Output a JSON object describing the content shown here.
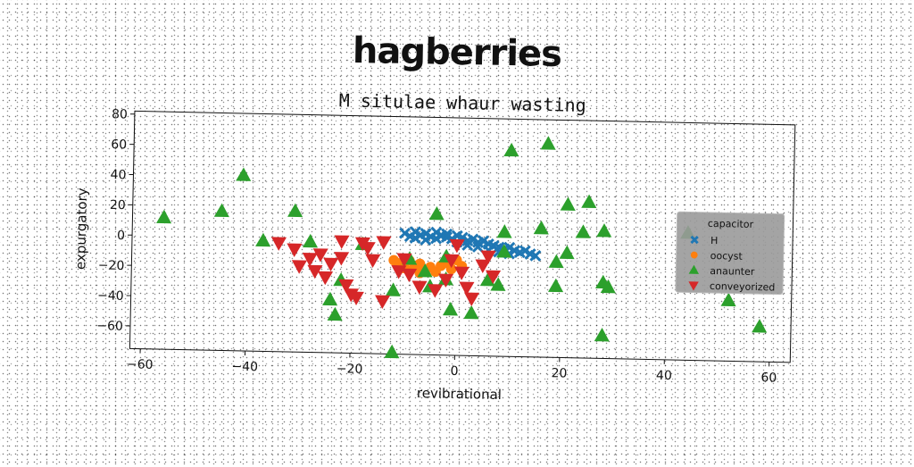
{
  "main_title": "hagberries",
  "chart_data": {
    "type": "scatter",
    "title": "M situlae whaur wasting",
    "xlabel": "revibrational",
    "ylabel": "expurgatory",
    "xlim": [
      -62,
      64
    ],
    "ylim": [
      -75,
      82
    ],
    "xticks": [
      -60,
      -40,
      -20,
      0,
      20,
      40,
      60
    ],
    "yticks": [
      -60,
      -40,
      -20,
      0,
      20,
      40,
      60,
      80
    ],
    "grid": false,
    "legend": {
      "title": "capacitor",
      "position": "center-right"
    },
    "series": [
      {
        "name": "H",
        "marker": "x",
        "color": "#1f77b4",
        "points": [
          [
            -10,
            5
          ],
          [
            -9,
            3
          ],
          [
            -8,
            6
          ],
          [
            -7,
            4
          ],
          [
            -6,
            5
          ],
          [
            -5,
            3
          ],
          [
            -4,
            6
          ],
          [
            -3,
            4
          ],
          [
            -2,
            5
          ],
          [
            -1,
            2
          ],
          [
            0,
            4
          ],
          [
            1,
            3
          ],
          [
            2,
            1
          ],
          [
            3,
            2
          ],
          [
            4,
            0
          ],
          [
            5,
            1
          ],
          [
            6,
            -1
          ],
          [
            7,
            -2
          ],
          [
            8,
            -3
          ],
          [
            9,
            -4
          ],
          [
            10,
            -3
          ],
          [
            11,
            -5
          ],
          [
            12,
            -6
          ],
          [
            13,
            -5
          ],
          [
            14,
            -7
          ],
          [
            15,
            -8
          ],
          [
            -8,
            2
          ],
          [
            -6,
            1
          ],
          [
            -4,
            2
          ],
          [
            -2,
            3
          ],
          [
            0,
            0
          ],
          [
            2,
            -2
          ],
          [
            4,
            -3
          ],
          [
            6,
            -5
          ],
          [
            8,
            -6
          ],
          [
            10,
            -7
          ]
        ]
      },
      {
        "name": "oocyst",
        "marker": "o",
        "color": "#ff7f0e",
        "points": [
          [
            -12,
            -13
          ],
          [
            -11,
            -15
          ],
          [
            -10,
            -18
          ],
          [
            -9,
            -20
          ],
          [
            -8,
            -17
          ],
          [
            -7,
            -21
          ],
          [
            -6,
            -19
          ],
          [
            -5,
            -17
          ],
          [
            -4,
            -20
          ],
          [
            -3,
            -16
          ],
          [
            -2,
            -14
          ],
          [
            -1,
            -18
          ],
          [
            0,
            -12
          ],
          [
            1,
            -16
          ],
          [
            -9,
            -13
          ],
          [
            -7,
            -15
          ]
        ]
      },
      {
        "name": "anaunter",
        "marker": "^",
        "color": "#2ca02c",
        "points": [
          [
            -56,
            12
          ],
          [
            -41,
            41
          ],
          [
            -45,
            17
          ],
          [
            -37,
            -2
          ],
          [
            -31,
            18
          ],
          [
            -28,
            -2
          ],
          [
            -24,
            -40
          ],
          [
            -23,
            -50
          ],
          [
            -22,
            -27
          ],
          [
            -18,
            -3
          ],
          [
            -12,
            -33
          ],
          [
            -12,
            -74
          ],
          [
            -9,
            -12
          ],
          [
            -6,
            -20
          ],
          [
            -5,
            -30
          ],
          [
            -4,
            18
          ],
          [
            -2,
            -10
          ],
          [
            -2,
            -25
          ],
          [
            -1,
            -45
          ],
          [
            3,
            -47
          ],
          [
            6,
            -25
          ],
          [
            8,
            -28
          ],
          [
            9,
            7
          ],
          [
            9,
            -6
          ],
          [
            10,
            61
          ],
          [
            16,
            10
          ],
          [
            17,
            66
          ],
          [
            19,
            -12
          ],
          [
            19,
            -28
          ],
          [
            21,
            26
          ],
          [
            21,
            -6
          ],
          [
            24,
            8
          ],
          [
            25,
            28
          ],
          [
            28,
            9
          ],
          [
            28,
            -25
          ],
          [
            29,
            -28
          ],
          [
            28,
            -60
          ],
          [
            44,
            9
          ],
          [
            52,
            -35
          ],
          [
            58,
            -52
          ]
        ]
      },
      {
        "name": "conveyorized",
        "marker": "v",
        "color": "#d62728",
        "points": [
          [
            -34,
            -3
          ],
          [
            -31,
            -7
          ],
          [
            -30,
            -18
          ],
          [
            -28,
            -13
          ],
          [
            -27,
            -21
          ],
          [
            -26,
            -10
          ],
          [
            -25,
            -25
          ],
          [
            -24,
            -16
          ],
          [
            -22,
            -1
          ],
          [
            -22,
            -12
          ],
          [
            -21,
            -30
          ],
          [
            -20,
            -36
          ],
          [
            -19,
            -38
          ],
          [
            -18,
            -2
          ],
          [
            -17,
            -5
          ],
          [
            -16,
            -13
          ],
          [
            -14,
            -40
          ],
          [
            -14,
            -1
          ],
          [
            -11,
            -20
          ],
          [
            -10,
            -12
          ],
          [
            -9,
            -22
          ],
          [
            -7,
            -30
          ],
          [
            -4,
            -32
          ],
          [
            -2,
            -25
          ],
          [
            -1,
            -12
          ],
          [
            0,
            -2
          ],
          [
            1,
            -20
          ],
          [
            2,
            -30
          ],
          [
            3,
            -37
          ],
          [
            5,
            -15
          ],
          [
            6,
            -9
          ],
          [
            7,
            -22
          ]
        ]
      }
    ]
  }
}
